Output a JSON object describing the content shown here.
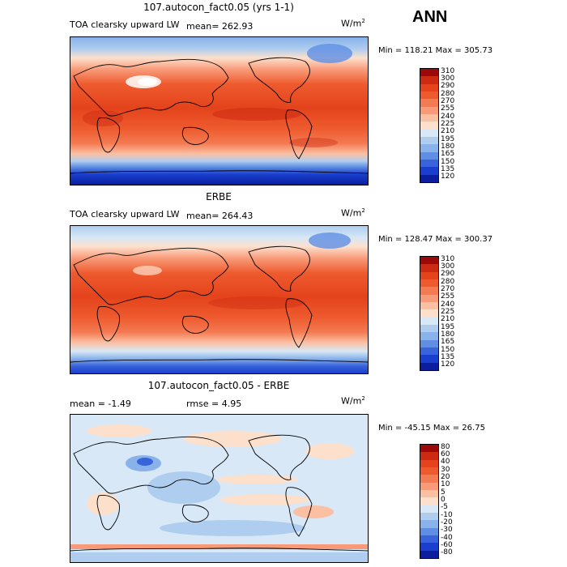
{
  "season": "ANN",
  "unit_base": "W/m",
  "unit_exp": "2",
  "chart_data": [
    {
      "type": "heatmap",
      "title": "107.autocon_fact0.05 (yrs 1-1)",
      "subtitle": "TOA clearsky upward LW",
      "stat_line": "mean= 262.93",
      "minmax": "Min = 118.21 Max = 305.73",
      "levels": [
        "310",
        "300",
        "290",
        "280",
        "270",
        "255",
        "240",
        "225",
        "210",
        "195",
        "180",
        "165",
        "150",
        "135",
        "120"
      ],
      "colors": [
        "#9b0a0a",
        "#cc2a12",
        "#e4431c",
        "#ee5a2e",
        "#f47a52",
        "#f89a78",
        "#fbbfa2",
        "#fde0cc",
        "#d8e8f6",
        "#aecdef",
        "#89b2eb",
        "#5f8ee3",
        "#3863db",
        "#1a3fcf",
        "#0a1e9e"
      ],
      "mean": 262.93
    },
    {
      "type": "heatmap",
      "title": "ERBE",
      "subtitle": "TOA clearsky upward LW",
      "stat_line": "mean= 264.43",
      "minmax": "Min = 128.47 Max = 300.37",
      "levels": [
        "310",
        "300",
        "290",
        "280",
        "270",
        "255",
        "240",
        "225",
        "210",
        "195",
        "180",
        "165",
        "150",
        "135",
        "120"
      ],
      "colors": [
        "#9b0a0a",
        "#cc2a12",
        "#e4431c",
        "#ee5a2e",
        "#f47a52",
        "#f89a78",
        "#fbbfa2",
        "#fde0cc",
        "#d8e8f6",
        "#aecdef",
        "#89b2eb",
        "#5f8ee3",
        "#3863db",
        "#1a3fcf",
        "#0a1e9e"
      ],
      "mean": 264.43
    },
    {
      "type": "heatmap",
      "title": "107.autocon_fact0.05 - ERBE",
      "stat_mean": "mean =  -1.49",
      "stat_rmse": "rmse =   4.95",
      "minmax": "Min = -45.15 Max =  26.75",
      "levels": [
        "80",
        "60",
        "40",
        "30",
        "20",
        "10",
        "5",
        "0",
        "-5",
        "-10",
        "-20",
        "-30",
        "-40",
        "-60",
        "-80"
      ],
      "colors": [
        "#9b0a0a",
        "#cc2a12",
        "#e4431c",
        "#ee5a2e",
        "#f47a52",
        "#f89a78",
        "#fbbfa2",
        "#fde0cc",
        "#d8e8f6",
        "#aecdef",
        "#89b2eb",
        "#5f8ee3",
        "#3863db",
        "#1a3fcf",
        "#0a1e9e"
      ],
      "mean": -1.49,
      "rmse": 4.95
    }
  ]
}
